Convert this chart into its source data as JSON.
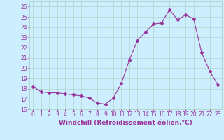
{
  "x": [
    0,
    1,
    2,
    3,
    4,
    5,
    6,
    7,
    8,
    9,
    10,
    11,
    12,
    13,
    14,
    15,
    16,
    17,
    18,
    19,
    20,
    21,
    22,
    23
  ],
  "y": [
    18.2,
    17.7,
    17.6,
    17.6,
    17.5,
    17.4,
    17.3,
    17.1,
    16.6,
    16.5,
    17.1,
    18.5,
    20.8,
    22.7,
    23.5,
    24.3,
    24.4,
    25.7,
    24.7,
    25.2,
    24.8,
    21.5,
    19.7,
    18.4
  ],
  "line_color": "#993399",
  "marker": "D",
  "markersize": 2,
  "linewidth": 0.8,
  "bg_color": "#cceeff",
  "grid_color": "#aaccbb",
  "xlabel": "Windchill (Refroidissement éolien,°C)",
  "xlabel_color": "#993399",
  "xlabel_fontsize": 6.5,
  "tick_color": "#993399",
  "tick_fontsize": 5.5,
  "ylim": [
    16,
    26.5
  ],
  "xlim": [
    -0.5,
    23.5
  ],
  "yticks": [
    16,
    17,
    18,
    19,
    20,
    21,
    22,
    23,
    24,
    25,
    26
  ],
  "xticks": [
    0,
    1,
    2,
    3,
    4,
    5,
    6,
    7,
    8,
    9,
    10,
    11,
    12,
    13,
    14,
    15,
    16,
    17,
    18,
    19,
    20,
    21,
    22,
    23
  ]
}
